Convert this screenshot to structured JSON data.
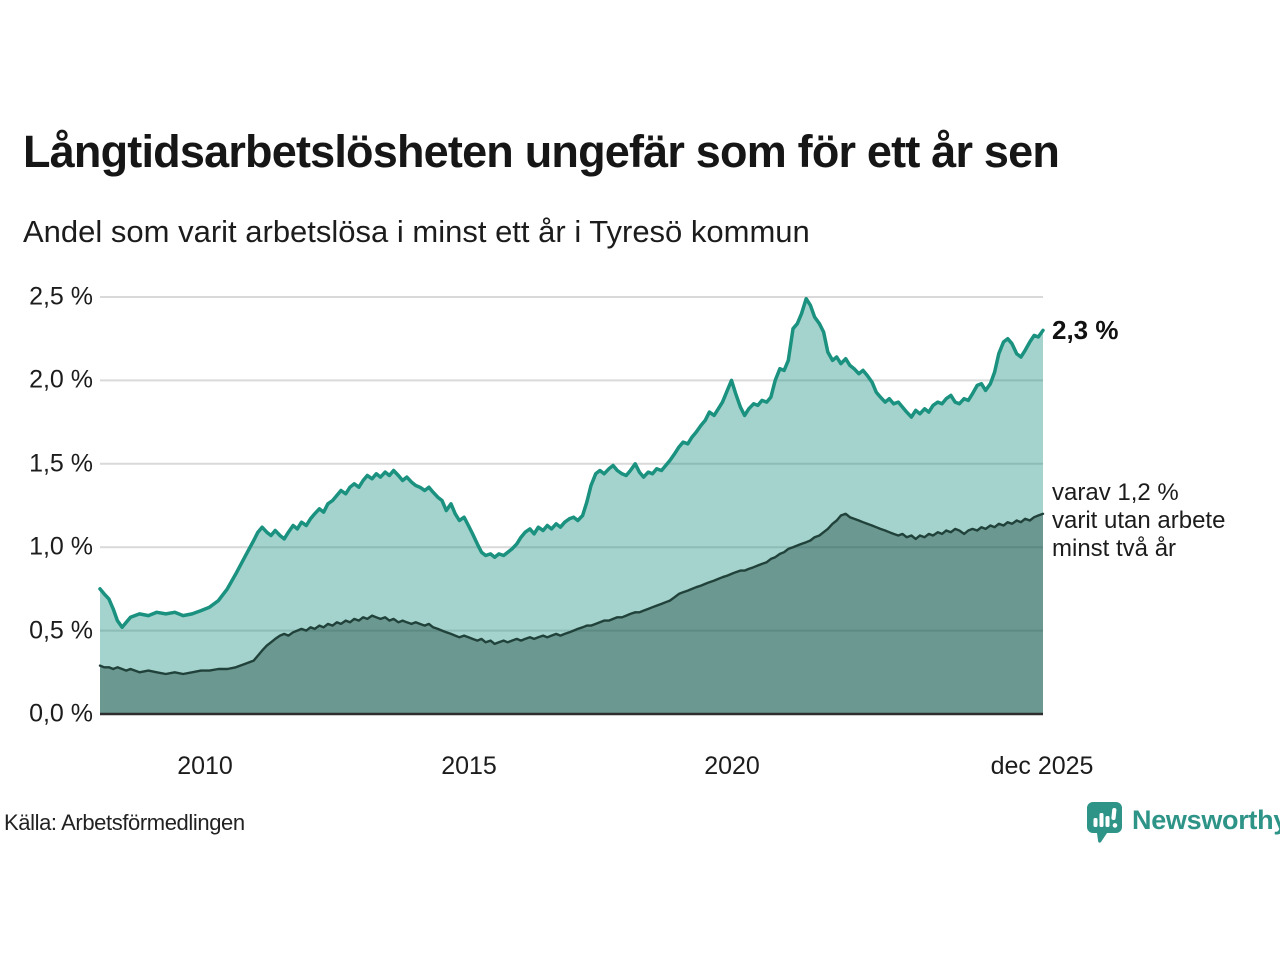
{
  "header": {
    "title": "Långtidsarbetslösheten ungefär som för ett år sen",
    "subtitle": "Andel som varit arbetslösa i minst ett år i Tyresö kommun"
  },
  "annotations": {
    "latest_total": "2,3 %",
    "two_year_note": "varav 1,2 %\nvarit utan arbete\nminst två år"
  },
  "footer": {
    "source": "Källa: Arbetsförmedlingen",
    "brand": "Newsworthy"
  },
  "colors": {
    "line_one_year": "#1b9180",
    "fill_one_year": "#1a917f",
    "fill_one_year_alpha": 0.4,
    "line_two_year": "#21423a",
    "fill_two_year": "#17423a",
    "fill_two_year_alpha": 0.4,
    "gridline": "#d9d9d9",
    "axis": "#2e2e2e",
    "text": "#1a1a1a",
    "brand": "#2e9488"
  },
  "chart_data": {
    "type": "area",
    "title": "Långtidsarbetslösheten ungefär som för ett år sen",
    "subtitle": "Andel som varit arbetslösa i minst ett år i Tyresö kommun",
    "unit": "%",
    "grid": true,
    "legend": "none",
    "xlim": [
      2008.0,
      2025.92
    ],
    "ylim": [
      0,
      2.5
    ],
    "yticks": [
      {
        "v": 0.0,
        "label": "0,0 %"
      },
      {
        "v": 0.5,
        "label": "0,5 %"
      },
      {
        "v": 1.0,
        "label": "1,0 %"
      },
      {
        "v": 1.5,
        "label": "1,5 %"
      },
      {
        "v": 2.0,
        "label": "2,0 %"
      },
      {
        "v": 2.5,
        "label": "2,5 %"
      }
    ],
    "xticks": [
      {
        "v": 2010,
        "label": "2010"
      },
      {
        "v": 2015,
        "label": "2015"
      },
      {
        "v": 2020,
        "label": "2020"
      },
      {
        "v": 2025.92,
        "label": "dec 2025"
      }
    ],
    "x": [
      2008.0,
      2008.08,
      2008.17,
      2008.25,
      2008.33,
      2008.42,
      2008.5,
      2008.58,
      2008.75,
      2008.92,
      2009.08,
      2009.25,
      2009.42,
      2009.58,
      2009.75,
      2009.92,
      2010.08,
      2010.25,
      2010.42,
      2010.58,
      2010.75,
      2010.92,
      2011.0,
      2011.08,
      2011.17,
      2011.25,
      2011.33,
      2011.42,
      2011.5,
      2011.58,
      2011.67,
      2011.75,
      2011.83,
      2011.92,
      2012.0,
      2012.08,
      2012.17,
      2012.25,
      2012.33,
      2012.42,
      2012.5,
      2012.58,
      2012.67,
      2012.75,
      2012.83,
      2012.92,
      2013.0,
      2013.08,
      2013.17,
      2013.25,
      2013.33,
      2013.42,
      2013.5,
      2013.58,
      2013.67,
      2013.75,
      2013.83,
      2013.92,
      2014.0,
      2014.08,
      2014.17,
      2014.25,
      2014.33,
      2014.42,
      2014.5,
      2014.58,
      2014.67,
      2014.75,
      2014.83,
      2014.92,
      2015.0,
      2015.08,
      2015.17,
      2015.25,
      2015.33,
      2015.42,
      2015.5,
      2015.58,
      2015.67,
      2015.75,
      2015.83,
      2015.92,
      2016.0,
      2016.08,
      2016.17,
      2016.25,
      2016.33,
      2016.42,
      2016.5,
      2016.58,
      2016.67,
      2016.75,
      2016.83,
      2016.92,
      2017.0,
      2017.08,
      2017.17,
      2017.25,
      2017.33,
      2017.42,
      2017.5,
      2017.58,
      2017.67,
      2017.75,
      2017.83,
      2017.92,
      2018.0,
      2018.08,
      2018.17,
      2018.25,
      2018.33,
      2018.42,
      2018.5,
      2018.58,
      2018.67,
      2018.75,
      2018.83,
      2018.92,
      2019.0,
      2019.08,
      2019.17,
      2019.25,
      2019.33,
      2019.42,
      2019.5,
      2019.58,
      2019.67,
      2019.75,
      2019.83,
      2019.92,
      2020.0,
      2020.08,
      2020.17,
      2020.25,
      2020.33,
      2020.42,
      2020.5,
      2020.58,
      2020.67,
      2020.75,
      2020.83,
      2020.92,
      2021.0,
      2021.08,
      2021.17,
      2021.25,
      2021.33,
      2021.42,
      2021.5,
      2021.58,
      2021.67,
      2021.75,
      2021.83,
      2021.92,
      2022.0,
      2022.08,
      2022.17,
      2022.25,
      2022.33,
      2022.42,
      2022.5,
      2022.58,
      2022.67,
      2022.75,
      2022.83,
      2022.92,
      2023.0,
      2023.08,
      2023.17,
      2023.25,
      2023.33,
      2023.42,
      2023.5,
      2023.58,
      2023.67,
      2023.75,
      2023.83,
      2023.92,
      2024.0,
      2024.08,
      2024.17,
      2024.25,
      2024.33,
      2024.42,
      2024.5,
      2024.58,
      2024.67,
      2024.75,
      2024.83,
      2024.92,
      2025.0,
      2025.08,
      2025.17,
      2025.25,
      2025.33,
      2025.42,
      2025.5,
      2025.58,
      2025.67,
      2025.75,
      2025.83,
      2025.92
    ],
    "series": [
      {
        "name": "Arbetslösa minst ett år",
        "latest_label": "2,3 %",
        "values": [
          0.75,
          0.72,
          0.69,
          0.63,
          0.56,
          0.52,
          0.55,
          0.58,
          0.6,
          0.59,
          0.61,
          0.6,
          0.61,
          0.59,
          0.6,
          0.62,
          0.64,
          0.68,
          0.75,
          0.84,
          0.94,
          1.04,
          1.09,
          1.12,
          1.09,
          1.07,
          1.1,
          1.07,
          1.05,
          1.09,
          1.13,
          1.11,
          1.15,
          1.13,
          1.17,
          1.2,
          1.23,
          1.21,
          1.26,
          1.28,
          1.31,
          1.34,
          1.32,
          1.36,
          1.38,
          1.36,
          1.4,
          1.43,
          1.41,
          1.44,
          1.42,
          1.45,
          1.43,
          1.46,
          1.43,
          1.4,
          1.42,
          1.39,
          1.37,
          1.36,
          1.34,
          1.36,
          1.33,
          1.3,
          1.28,
          1.22,
          1.26,
          1.2,
          1.16,
          1.18,
          1.13,
          1.08,
          1.02,
          0.97,
          0.95,
          0.96,
          0.94,
          0.96,
          0.95,
          0.97,
          0.99,
          1.02,
          1.06,
          1.09,
          1.11,
          1.08,
          1.12,
          1.1,
          1.13,
          1.11,
          1.14,
          1.12,
          1.15,
          1.17,
          1.18,
          1.16,
          1.19,
          1.27,
          1.37,
          1.44,
          1.46,
          1.44,
          1.47,
          1.49,
          1.46,
          1.44,
          1.43,
          1.46,
          1.5,
          1.45,
          1.42,
          1.45,
          1.44,
          1.47,
          1.46,
          1.49,
          1.52,
          1.56,
          1.6,
          1.63,
          1.62,
          1.66,
          1.69,
          1.73,
          1.76,
          1.81,
          1.79,
          1.83,
          1.87,
          1.94,
          2.0,
          1.92,
          1.84,
          1.79,
          1.83,
          1.86,
          1.85,
          1.88,
          1.87,
          1.9,
          2.0,
          2.07,
          2.06,
          2.12,
          2.31,
          2.34,
          2.4,
          2.49,
          2.45,
          2.38,
          2.34,
          2.29,
          2.17,
          2.12,
          2.14,
          2.1,
          2.13,
          2.09,
          2.07,
          2.04,
          2.06,
          2.03,
          1.99,
          1.93,
          1.9,
          1.87,
          1.89,
          1.86,
          1.87,
          1.84,
          1.81,
          1.78,
          1.82,
          1.8,
          1.83,
          1.81,
          1.85,
          1.87,
          1.86,
          1.89,
          1.91,
          1.87,
          1.86,
          1.89,
          1.88,
          1.92,
          1.97,
          1.98,
          1.94,
          1.98,
          2.05,
          2.16,
          2.23,
          2.25,
          2.22,
          2.16,
          2.14,
          2.18,
          2.23,
          2.27,
          2.26,
          2.3
        ]
      },
      {
        "name": "varav utan arbete minst två år",
        "latest_label": "varav 1,2 %",
        "values": [
          0.29,
          0.28,
          0.28,
          0.27,
          0.28,
          0.27,
          0.26,
          0.27,
          0.25,
          0.26,
          0.25,
          0.24,
          0.25,
          0.24,
          0.25,
          0.26,
          0.26,
          0.27,
          0.27,
          0.28,
          0.3,
          0.32,
          0.35,
          0.38,
          0.41,
          0.43,
          0.45,
          0.47,
          0.48,
          0.47,
          0.49,
          0.5,
          0.51,
          0.5,
          0.52,
          0.51,
          0.53,
          0.52,
          0.54,
          0.53,
          0.55,
          0.54,
          0.56,
          0.55,
          0.57,
          0.56,
          0.58,
          0.57,
          0.59,
          0.58,
          0.57,
          0.58,
          0.56,
          0.57,
          0.55,
          0.56,
          0.55,
          0.54,
          0.55,
          0.54,
          0.53,
          0.54,
          0.52,
          0.51,
          0.5,
          0.49,
          0.48,
          0.47,
          0.46,
          0.47,
          0.46,
          0.45,
          0.44,
          0.45,
          0.43,
          0.44,
          0.42,
          0.43,
          0.44,
          0.43,
          0.44,
          0.45,
          0.44,
          0.45,
          0.46,
          0.45,
          0.46,
          0.47,
          0.46,
          0.47,
          0.48,
          0.47,
          0.48,
          0.49,
          0.5,
          0.51,
          0.52,
          0.53,
          0.53,
          0.54,
          0.55,
          0.56,
          0.56,
          0.57,
          0.58,
          0.58,
          0.59,
          0.6,
          0.61,
          0.61,
          0.62,
          0.63,
          0.64,
          0.65,
          0.66,
          0.67,
          0.68,
          0.7,
          0.72,
          0.73,
          0.74,
          0.75,
          0.76,
          0.77,
          0.78,
          0.79,
          0.8,
          0.81,
          0.82,
          0.83,
          0.84,
          0.85,
          0.86,
          0.86,
          0.87,
          0.88,
          0.89,
          0.9,
          0.91,
          0.93,
          0.94,
          0.96,
          0.97,
          0.99,
          1.0,
          1.01,
          1.02,
          1.03,
          1.04,
          1.06,
          1.07,
          1.09,
          1.11,
          1.14,
          1.16,
          1.19,
          1.2,
          1.18,
          1.17,
          1.16,
          1.15,
          1.14,
          1.13,
          1.12,
          1.11,
          1.1,
          1.09,
          1.08,
          1.07,
          1.08,
          1.06,
          1.07,
          1.05,
          1.07,
          1.06,
          1.08,
          1.07,
          1.09,
          1.08,
          1.1,
          1.09,
          1.11,
          1.1,
          1.08,
          1.1,
          1.11,
          1.1,
          1.12,
          1.11,
          1.13,
          1.12,
          1.14,
          1.13,
          1.15,
          1.14,
          1.16,
          1.15,
          1.17,
          1.16,
          1.18,
          1.19,
          1.2
        ]
      }
    ]
  }
}
